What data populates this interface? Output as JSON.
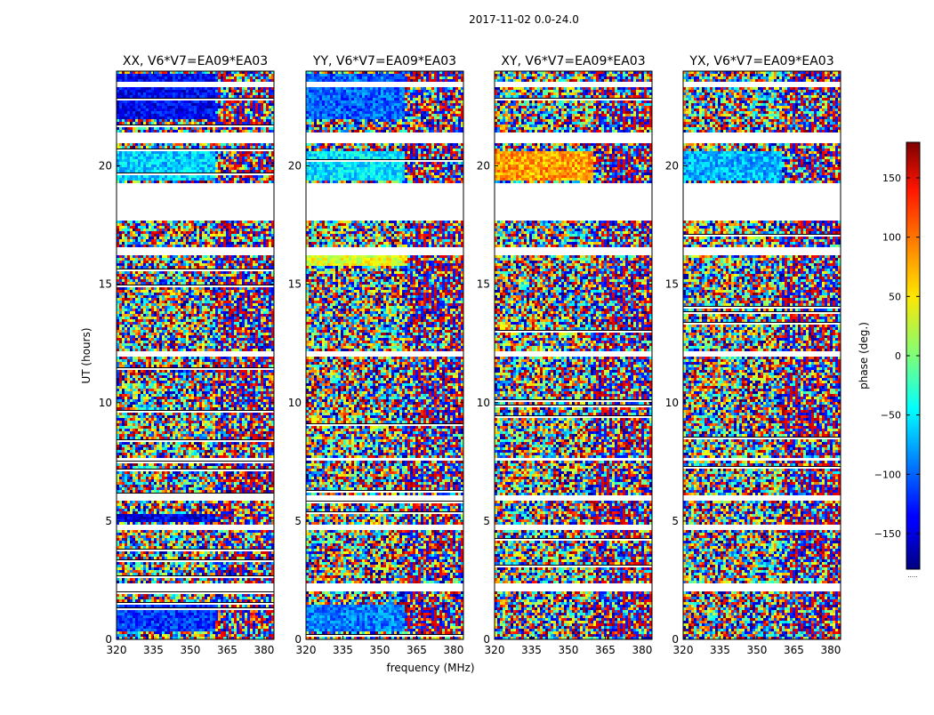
{
  "figure": {
    "suptitle": "2017-11-02 0.0-24.0"
  },
  "chart_data": {
    "type": "heatmap",
    "xlabel": "frequency (MHz)",
    "ylabel": "UT (hours)",
    "xlim": [
      320,
      384
    ],
    "ylim": [
      0,
      24
    ],
    "x_ticks": [
      320,
      335,
      350,
      365,
      380
    ],
    "y_ticks": [
      0,
      5,
      10,
      15,
      20
    ],
    "colorbar": {
      "label": "phase (deg.)",
      "range": [
        -180,
        180
      ],
      "ticks": [
        -150,
        -100,
        -50,
        0,
        50,
        100,
        150
      ],
      "colormap": "jet",
      "extra_label": "....."
    },
    "panels": [
      {
        "title": "XX, V6*V7=EA09*EA03",
        "pol": "XX"
      },
      {
        "title": "YY, V6*V7=EA09*EA03",
        "pol": "YY"
      },
      {
        "title": "XY, V6*V7=EA09*EA03",
        "pol": "XY"
      },
      {
        "title": "YX, V6*V7=EA09*EA03",
        "pol": "YX"
      }
    ],
    "blank_intervals_hours": [
      [
        2.0,
        2.4
      ],
      [
        4.6,
        4.8
      ],
      [
        5.9,
        6.1
      ],
      [
        7.5,
        7.7
      ],
      [
        11.9,
        12.2
      ],
      [
        16.2,
        16.6
      ],
      [
        17.7,
        19.3
      ],
      [
        21.0,
        21.4
      ],
      [
        23.3,
        23.5
      ]
    ]
  }
}
